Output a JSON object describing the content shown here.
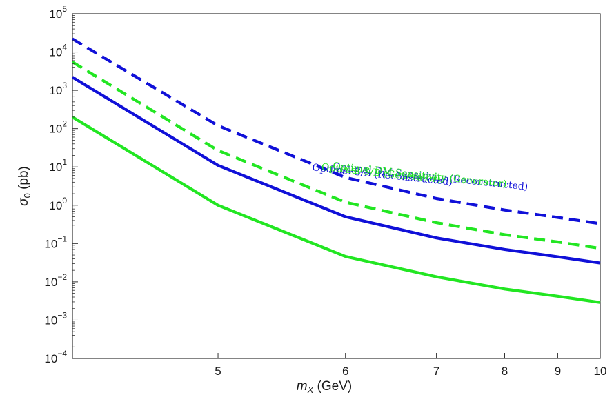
{
  "chart_data": {
    "type": "line",
    "xlabel": {
      "main": "m",
      "sub": "X",
      "unit": " (GeV)"
    },
    "ylabel": {
      "main": "σ",
      "sub": "0",
      "unit": " (pb)"
    },
    "xscale": "reciprocal",
    "yscale": "log",
    "xlim": [
      4.2,
      10
    ],
    "ylim": [
      0.0001,
      100000
    ],
    "grid": false,
    "x_ticks": [
      5,
      6,
      7,
      8,
      9,
      10
    ],
    "y_ticks": [
      {
        "value": 0.0001,
        "base": "10",
        "exp": "−4"
      },
      {
        "value": 0.001,
        "base": "10",
        "exp": "−3"
      },
      {
        "value": 0.01,
        "base": "10",
        "exp": "−2"
      },
      {
        "value": 0.1,
        "base": "10",
        "exp": "−1"
      },
      {
        "value": 1,
        "base": "10",
        "exp": "0"
      },
      {
        "value": 10,
        "base": "10",
        "exp": "1"
      },
      {
        "value": 100,
        "base": "10",
        "exp": "2"
      },
      {
        "value": 1000,
        "base": "10",
        "exp": "3"
      },
      {
        "value": 10000,
        "base": "10",
        "exp": "4"
      },
      {
        "value": 100000,
        "base": "10",
        "exp": "5"
      }
    ],
    "series": [
      {
        "name": "Optimal S/B (Reconstructed)",
        "color": "#1010d8",
        "dashed": true,
        "x": [
          4.2,
          5,
          6,
          7,
          8,
          9,
          10
        ],
        "y": [
          22000,
          120,
          5.3,
          1.5,
          0.75,
          0.48,
          0.33
        ],
        "label_at": [
          5.7,
          8.1
        ],
        "label_angle": 6
      },
      {
        "name": "Optimal S/B (Generator)",
        "color": "#22e622",
        "dashed": true,
        "x": [
          4.2,
          5,
          6,
          7,
          8,
          9,
          10
        ],
        "y": [
          5500,
          27,
          1.2,
          0.35,
          0.17,
          0.11,
          0.075
        ],
        "label_at": [
          5.78,
          8.33
        ],
        "label_angle": 6
      },
      {
        "name": "Optimal DM Sensitivity (Reconstructed)",
        "color": "#1010d8",
        "dashed": false,
        "x": [
          4.2,
          5,
          6,
          7,
          8,
          9,
          10
        ],
        "y": [
          2200,
          11,
          0.5,
          0.14,
          0.07,
          0.045,
          0.031
        ],
        "label_at": [
          5.88,
          8.55
        ],
        "label_angle": 6
      },
      {
        "name": "Optimal DM Sensitivity (Generator)",
        "color": "#22e622",
        "dashed": false,
        "x": [
          4.2,
          5,
          6,
          7,
          8,
          9,
          10
        ],
        "y": [
          200,
          1.0,
          0.046,
          0.0135,
          0.0065,
          0.0042,
          0.0029
        ],
        "label_at": [
          5.88,
          8.9
        ],
        "label_angle": 6
      }
    ]
  }
}
